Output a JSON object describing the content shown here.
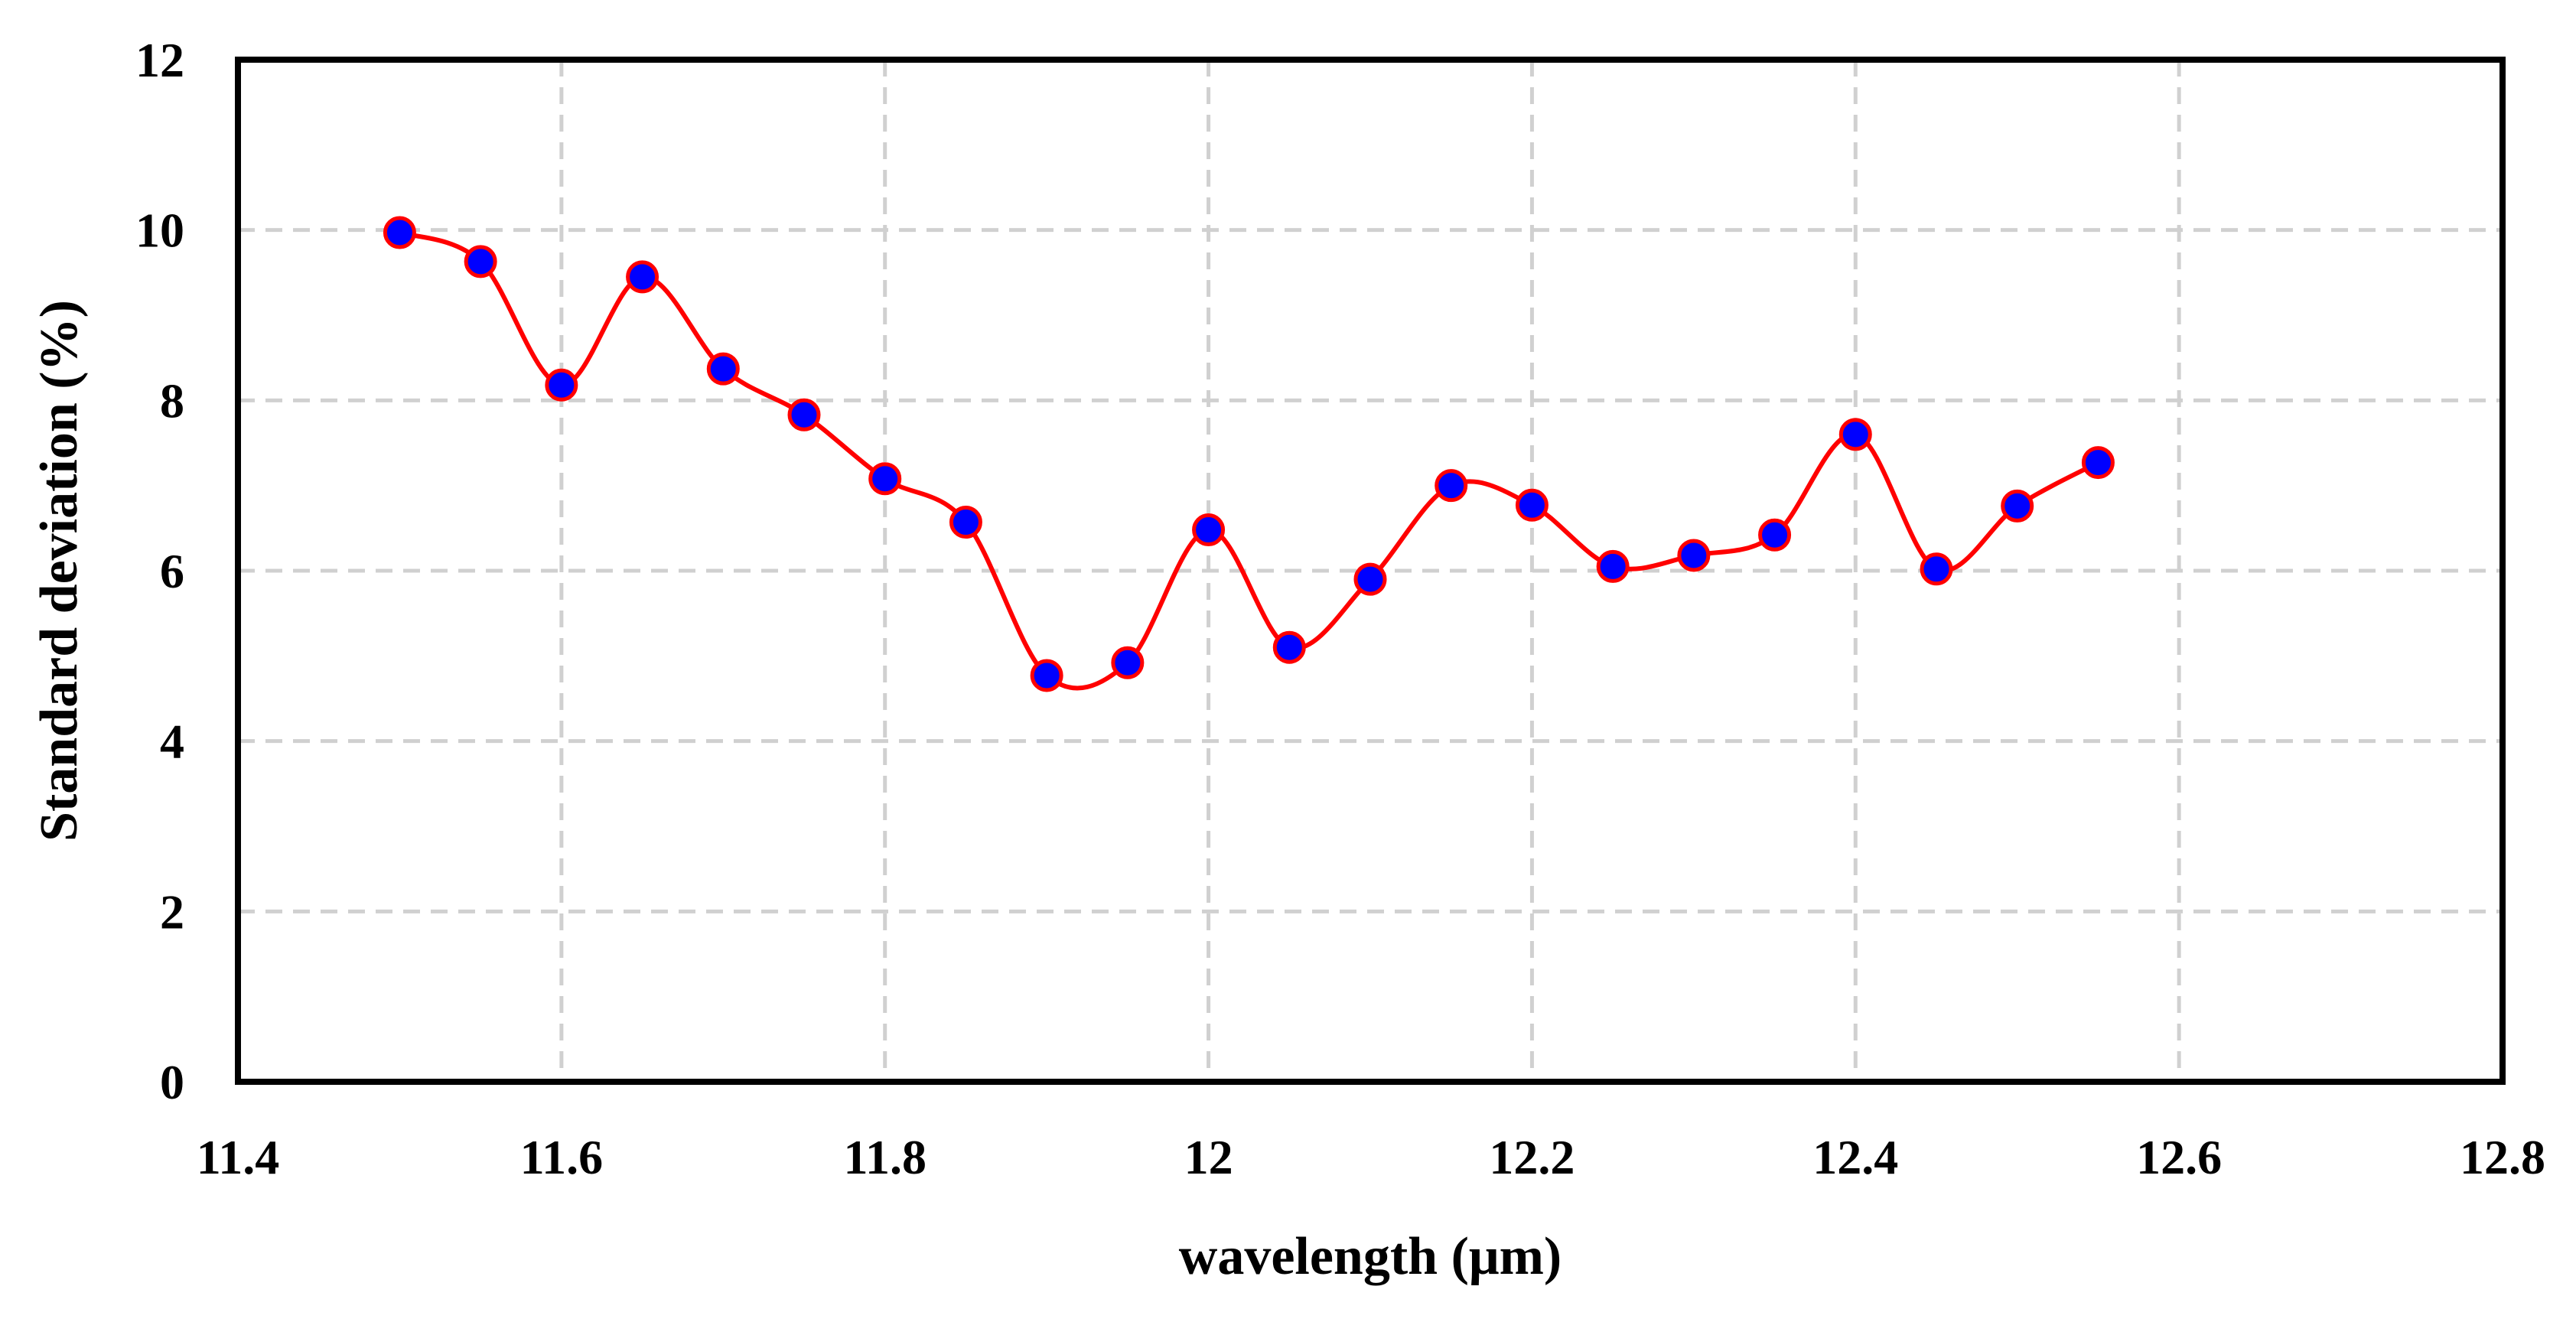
{
  "chart_data": {
    "type": "line",
    "title": "",
    "xlabel": "wavelength (μm)",
    "ylabel": "Standard deviation (%)",
    "xlim": [
      11.4,
      12.8
    ],
    "ylim": [
      0,
      12
    ],
    "x_ticks": [
      "11.4",
      "11.6",
      "11.8",
      "12",
      "12.2",
      "12.4",
      "12.6",
      "12.8"
    ],
    "y_ticks": [
      "0",
      "2",
      "4",
      "6",
      "8",
      "10",
      "12"
    ],
    "grid": true,
    "legend": "none",
    "series": [
      {
        "name": "Standard deviation",
        "line_color": "#ff0000",
        "marker_fill": "#0000ff",
        "marker_edge": "#ff0000",
        "smooth": true,
        "x": [
          11.5,
          11.55,
          11.6,
          11.65,
          11.7,
          11.75,
          11.8,
          11.85,
          11.9,
          11.95,
          12.0,
          12.05,
          12.1,
          12.15,
          12.2,
          12.25,
          12.3,
          12.35,
          12.4,
          12.45,
          12.5,
          12.55
        ],
        "y": [
          9.97,
          9.63,
          8.18,
          9.45,
          8.37,
          7.83,
          7.08,
          6.57,
          4.77,
          4.92,
          6.48,
          5.1,
          5.9,
          7.0,
          6.77,
          6.05,
          6.18,
          6.42,
          7.6,
          6.02,
          6.76,
          7.27
        ]
      }
    ]
  }
}
